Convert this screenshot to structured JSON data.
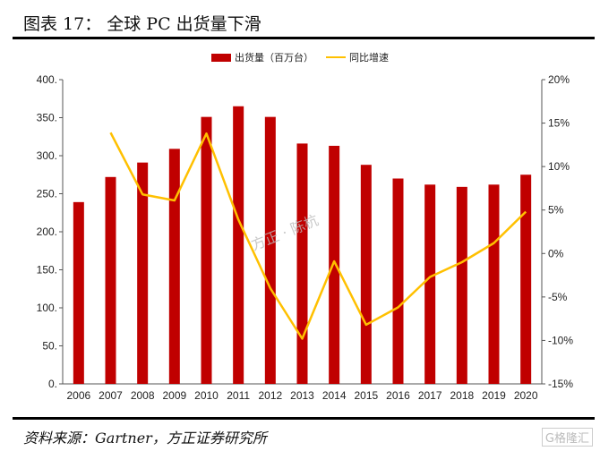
{
  "header": {
    "title": "图表 17： 全球 PC 出货量下滑"
  },
  "footer": {
    "source": "资料来源：Gartner，方正证券研究所",
    "logo": "格隆汇"
  },
  "watermark": "方正 · 陈杭",
  "chart_data": {
    "type": "bar+line",
    "title": "图表 17： 全球 PC 出货量下滑",
    "categories": [
      "2006",
      "2007",
      "2008",
      "2009",
      "2010",
      "2011",
      "2012",
      "2013",
      "2014",
      "2015",
      "2016",
      "2017",
      "2018",
      "2019",
      "2020"
    ],
    "series": [
      {
        "name": "出货量（百万台）",
        "type": "bar",
        "axis": "left",
        "color": "#c00000",
        "values": [
          239,
          272,
          291,
          309,
          351,
          365,
          351,
          316,
          313,
          288,
          270,
          262,
          259,
          262,
          275
        ]
      },
      {
        "name": "同比增速",
        "type": "line",
        "axis": "right",
        "color": "#ffc000",
        "values": [
          null,
          13.9,
          6.8,
          6.1,
          13.8,
          3.9,
          -4.0,
          -9.8,
          -0.9,
          -8.2,
          -6.2,
          -2.7,
          -1.0,
          1.2,
          4.8
        ]
      }
    ],
    "y_left": {
      "ylim": [
        0,
        400
      ],
      "ticks": [
        "0.",
        "50.",
        "100.",
        "150.",
        "200.",
        "250.",
        "300.",
        "350.",
        "400."
      ]
    },
    "y_right": {
      "ylim": [
        -15,
        20
      ],
      "ticks": [
        "-15%",
        "-10%",
        "-5%",
        "0%",
        "5%",
        "10%",
        "15%",
        "20%"
      ]
    },
    "grid": false,
    "legend": "top"
  }
}
